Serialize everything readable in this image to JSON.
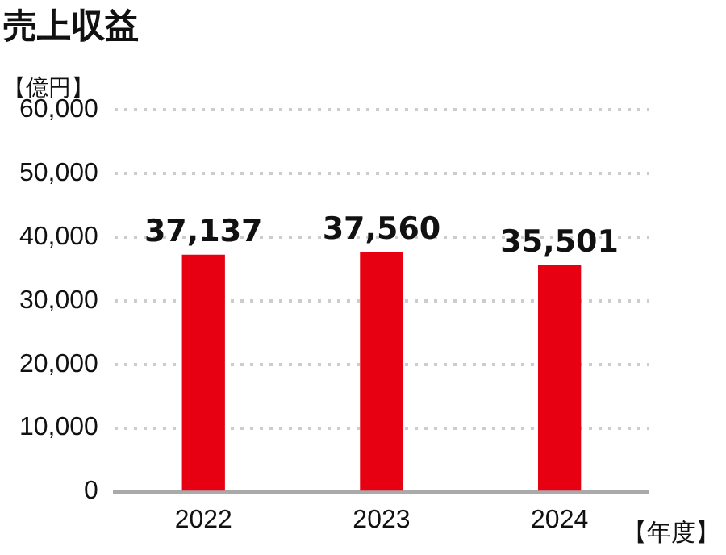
{
  "chart_data": {
    "type": "bar",
    "title": "売上収益",
    "ylabel": "【億円】",
    "xlabel": "【年度】",
    "categories": [
      "2022",
      "2023",
      "2024"
    ],
    "values": [
      37137,
      37560,
      35501
    ],
    "color": "#e60012",
    "value_labels": [
      "37,137",
      "37,560",
      "35,501"
    ],
    "ylim": [
      0,
      60000
    ],
    "yticks": [
      0,
      {
        "value": 10000,
        "label": "10,000"
      },
      {
        "value": 20000,
        "label": "20,000"
      },
      {
        "value": 30000,
        "label": "30,000"
      },
      {
        "value": 40000,
        "label": "40,000"
      },
      {
        "value": 50000,
        "label": "50,000"
      },
      {
        "value": 60000,
        "label": "60,000"
      }
    ],
    "grid": "y",
    "legend": false
  }
}
